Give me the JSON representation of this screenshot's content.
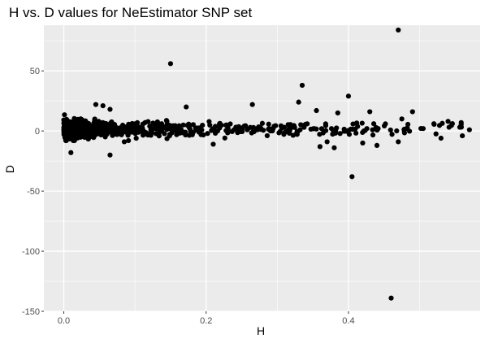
{
  "chart_data": {
    "type": "scatter",
    "title": "H vs. D values for NeEstimator SNP set",
    "xlabel": "H",
    "ylabel": "D",
    "xlim": [
      -0.028,
      0.585
    ],
    "ylim": [
      -150,
      88
    ],
    "x_ticks": [
      0.0,
      0.2,
      0.4
    ],
    "x_tick_labels": [
      "0.0",
      "0.2",
      "0.4"
    ],
    "y_ticks": [
      -150,
      -100,
      -50,
      0,
      50
    ],
    "y_tick_labels": [
      "-150",
      "-100",
      "-50",
      "0",
      "50"
    ],
    "grid": true,
    "legend": "none",
    "panel_color": "#ebebeb",
    "grid_color": "#ffffff",
    "point_color": "#000000",
    "notable_points": [
      {
        "x": 0.47,
        "y": 84
      },
      {
        "x": 0.15,
        "y": 56
      },
      {
        "x": 0.335,
        "y": 38
      },
      {
        "x": 0.33,
        "y": 24
      },
      {
        "x": 0.4,
        "y": 29
      },
      {
        "x": 0.265,
        "y": 22
      },
      {
        "x": 0.172,
        "y": 20
      },
      {
        "x": 0.045,
        "y": 22
      },
      {
        "x": 0.055,
        "y": 21
      },
      {
        "x": 0.065,
        "y": 18
      },
      {
        "x": 0.49,
        "y": 16
      },
      {
        "x": 0.355,
        "y": 17
      },
      {
        "x": 0.43,
        "y": 16
      },
      {
        "x": 0.385,
        "y": 15
      },
      {
        "x": 0.475,
        "y": 10
      },
      {
        "x": 0.405,
        "y": -38
      },
      {
        "x": 0.46,
        "y": -139
      },
      {
        "x": 0.065,
        "y": -20
      },
      {
        "x": 0.01,
        "y": -18
      },
      {
        "x": 0.36,
        "y": -13
      },
      {
        "x": 0.37,
        "y": -9
      },
      {
        "x": 0.38,
        "y": -14
      },
      {
        "x": 0.42,
        "y": -10
      },
      {
        "x": 0.21,
        "y": -11
      },
      {
        "x": 0.44,
        "y": -12
      },
      {
        "x": 0.47,
        "y": -9
      },
      {
        "x": 0.085,
        "y": -9
      },
      {
        "x": 0.53,
        "y": -6
      },
      {
        "x": 0.56,
        "y": -4
      },
      {
        "x": 0.54,
        "y": 8
      },
      {
        "x": 0.52,
        "y": 6
      },
      {
        "x": 0.57,
        "y": 1
      },
      {
        "x": 0.505,
        "y": 2
      }
    ],
    "dense_cloud": {
      "count": 900,
      "seed": 12345,
      "x_weights_by_bin": [
        {
          "range": [
            0.0,
            0.02
          ],
          "weight": 0.4
        },
        {
          "range": [
            0.02,
            0.06
          ],
          "weight": 0.2
        },
        {
          "range": [
            0.06,
            0.15
          ],
          "weight": 0.17
        },
        {
          "range": [
            0.15,
            0.3
          ],
          "weight": 0.12
        },
        {
          "range": [
            0.3,
            0.45
          ],
          "weight": 0.08
        },
        {
          "range": [
            0.45,
            0.56
          ],
          "weight": 0.03
        }
      ],
      "y_center": 1.5,
      "y_spread_low_h": 3.5,
      "y_spread_high_h": 3.0
    }
  }
}
